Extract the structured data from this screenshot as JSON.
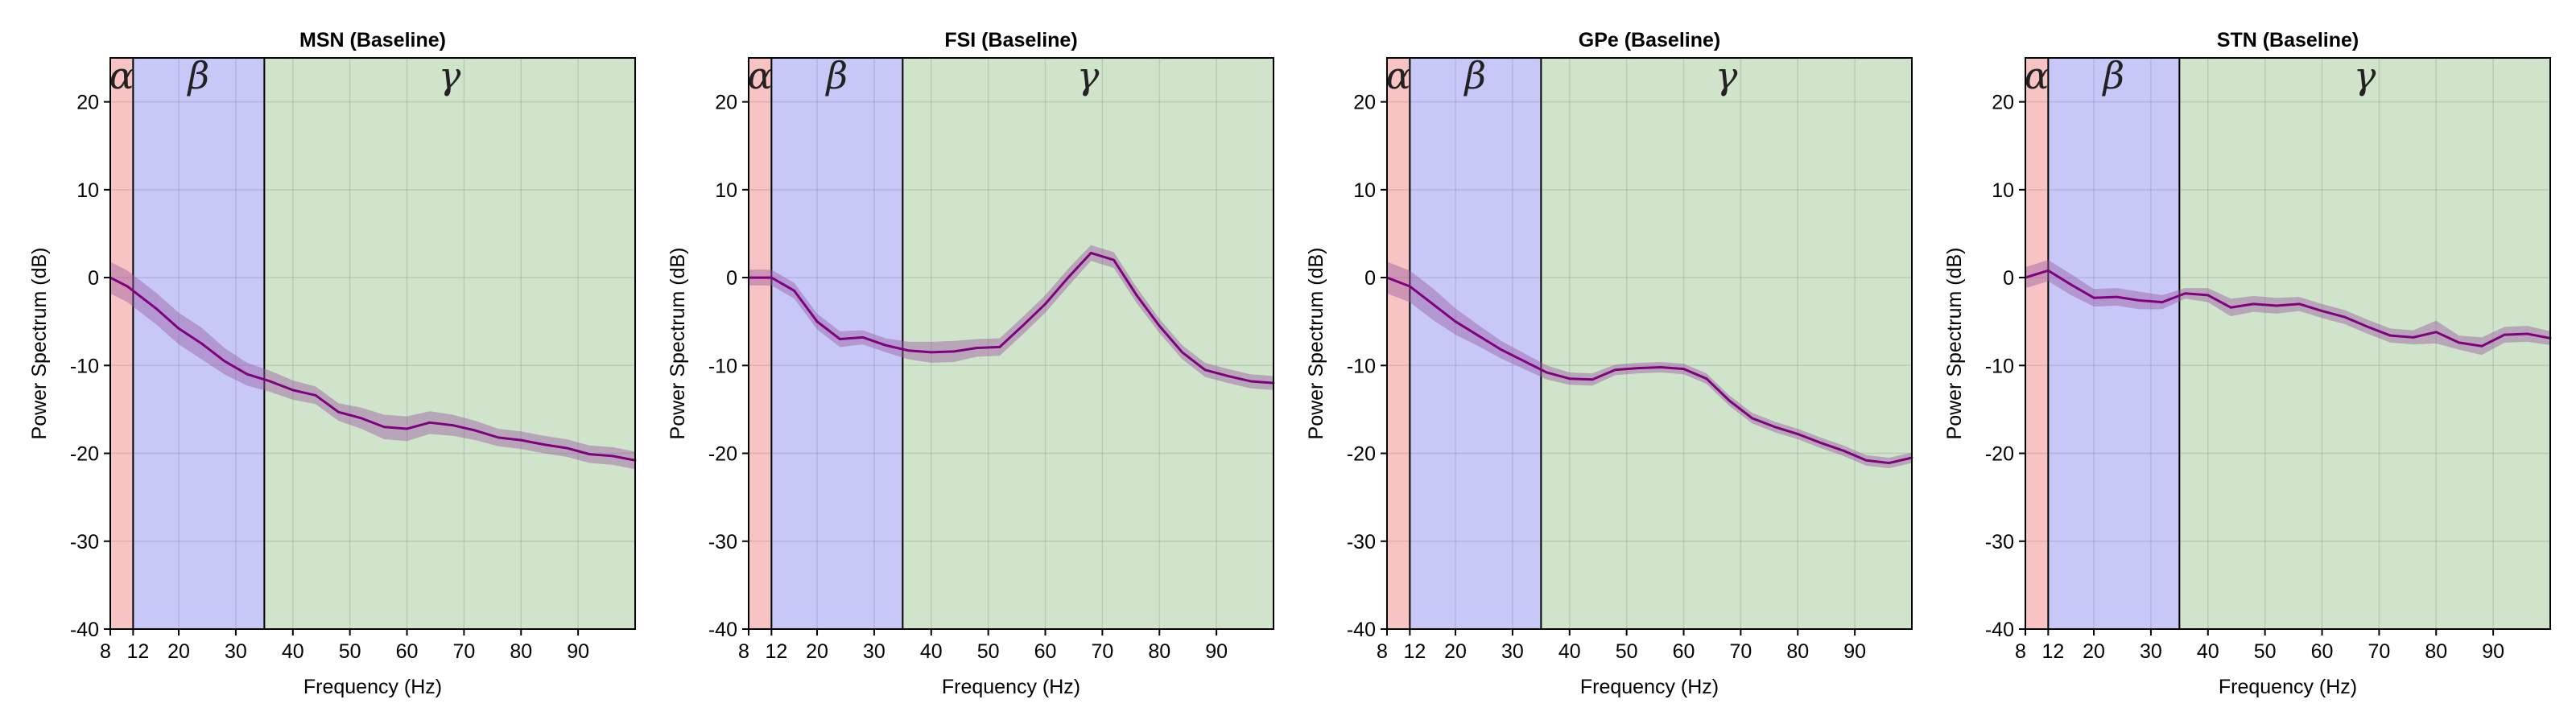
{
  "figure": {
    "background": "#ffffff"
  },
  "bands": [
    {
      "name": "alpha",
      "label": "α",
      "from": 8,
      "to": 12,
      "color": "#f7c3c3"
    },
    {
      "name": "beta",
      "label": "β",
      "from": 12,
      "to": 35,
      "color": "#c8c8f8"
    },
    {
      "name": "gamma",
      "label": "γ",
      "from": 35,
      "to": 100,
      "color": "#cfe4cb"
    }
  ],
  "style": {
    "line_color": "#800080",
    "ci_color": "#9a5aa0",
    "grid": true
  },
  "chart_data": [
    {
      "type": "line",
      "title": "MSN (Baseline)",
      "xlabel": "Frequency (Hz)",
      "ylabel": "Power Spectrum (dB)",
      "xlim": [
        8,
        100
      ],
      "ylim": [
        -40,
        25
      ],
      "xticks": [
        8,
        12,
        20,
        30,
        40,
        50,
        60,
        70,
        80,
        90
      ],
      "yticks": [
        -40,
        -30,
        -20,
        -10,
        0,
        10,
        20
      ],
      "x": [
        8,
        11,
        16,
        20,
        24,
        28,
        32,
        36,
        40,
        44,
        48,
        52,
        56,
        60,
        64,
        68,
        72,
        76,
        80,
        84,
        88,
        92,
        96,
        100
      ],
      "y": [
        0,
        -1,
        -3.5,
        -5.8,
        -7.5,
        -9.5,
        -11,
        -11.8,
        -12.8,
        -13.4,
        -15.3,
        -16,
        -17,
        -17.2,
        -16.5,
        -16.8,
        -17.4,
        -18.2,
        -18.5,
        -19,
        -19.4,
        -20.1,
        -20.3,
        -20.8
      ],
      "ci": [
        1.8,
        1.8,
        1.8,
        1.8,
        1.8,
        1.5,
        1.3,
        1.2,
        1.1,
        1.0,
        1.0,
        1.2,
        1.4,
        1.4,
        1.3,
        1.2,
        1.1,
        1.0,
        1.0,
        1.0,
        1.0,
        1.0,
        1.0,
        1.0
      ]
    },
    {
      "type": "line",
      "title": "FSI (Baseline)",
      "xlabel": "Frequency (Hz)",
      "ylabel": "Power Spectrum (dB)",
      "xlim": [
        8,
        100
      ],
      "ylim": [
        -40,
        25
      ],
      "xticks": [
        8,
        12,
        20,
        30,
        40,
        50,
        60,
        70,
        80,
        90
      ],
      "yticks": [
        -40,
        -30,
        -20,
        -10,
        0,
        10,
        20
      ],
      "x": [
        8,
        12,
        16,
        20,
        24,
        28,
        32,
        36,
        40,
        44,
        48,
        52,
        56,
        60,
        64,
        68,
        72,
        76,
        80,
        84,
        88,
        92,
        96,
        100
      ],
      "y": [
        0,
        0,
        -1.5,
        -5,
        -7,
        -6.8,
        -7.7,
        -8.3,
        -8.5,
        -8.4,
        -8,
        -7.9,
        -5.5,
        -3,
        0,
        2.8,
        2,
        -2,
        -5.5,
        -8.5,
        -10.5,
        -11.2,
        -11.8,
        -12
      ],
      "ci": [
        0.9,
        0.9,
        0.9,
        0.9,
        0.9,
        0.8,
        0.8,
        1.0,
        1.2,
        1.2,
        1.0,
        1.0,
        1.0,
        1.0,
        1.0,
        0.9,
        0.9,
        0.9,
        0.8,
        0.8,
        0.8,
        0.8,
        0.8,
        0.8
      ]
    },
    {
      "type": "line",
      "title": "GPe (Baseline)",
      "xlabel": "Frequency (Hz)",
      "ylabel": "Power Spectrum (dB)",
      "xlim": [
        8,
        100
      ],
      "ylim": [
        -40,
        25
      ],
      "xticks": [
        8,
        12,
        20,
        30,
        40,
        50,
        60,
        70,
        80,
        90
      ],
      "yticks": [
        -40,
        -30,
        -20,
        -10,
        0,
        10,
        20
      ],
      "x": [
        8,
        12,
        16,
        20,
        24,
        28,
        32,
        36,
        40,
        44,
        48,
        52,
        56,
        60,
        64,
        68,
        72,
        76,
        80,
        84,
        88,
        92,
        96,
        100
      ],
      "y": [
        0,
        -1,
        -3,
        -5,
        -6.6,
        -8.2,
        -9.5,
        -10.8,
        -11.5,
        -11.6,
        -10.5,
        -10.3,
        -10.2,
        -10.4,
        -11.5,
        -14,
        -16,
        -17,
        -17.8,
        -18.8,
        -19.7,
        -20.8,
        -21.1,
        -20.5
      ],
      "ci": [
        1.8,
        1.8,
        1.8,
        1.5,
        1.2,
        1.0,
        0.9,
        0.8,
        0.7,
        0.7,
        0.6,
        0.6,
        0.6,
        0.6,
        0.6,
        0.6,
        0.6,
        0.6,
        0.6,
        0.6,
        0.6,
        0.6,
        0.6,
        0.6
      ]
    },
    {
      "type": "line",
      "title": "STN (Baseline)",
      "xlabel": "Frequency (Hz)",
      "ylabel": "Power Spectrum (dB)",
      "xlim": [
        8,
        100
      ],
      "ylim": [
        -40,
        25
      ],
      "xticks": [
        8,
        12,
        20,
        30,
        40,
        50,
        60,
        70,
        80,
        90
      ],
      "yticks": [
        -40,
        -30,
        -20,
        -10,
        0,
        10,
        20
      ],
      "x": [
        8,
        12,
        16,
        20,
        24,
        28,
        32,
        36,
        40,
        44,
        48,
        52,
        56,
        60,
        64,
        68,
        72,
        76,
        80,
        84,
        88,
        92,
        96,
        100
      ],
      "y": [
        0,
        0.8,
        -0.8,
        -2.3,
        -2.2,
        -2.6,
        -2.8,
        -1.8,
        -2,
        -3.4,
        -3,
        -3.2,
        -3,
        -3.8,
        -4.5,
        -5.6,
        -6.6,
        -6.8,
        -6.2,
        -7.4,
        -7.8,
        -6.5,
        -6.4,
        -6.9
      ],
      "ci": [
        1.2,
        1.2,
        1.2,
        1.0,
        1.0,
        1.0,
        0.8,
        0.6,
        0.8,
        1.0,
        0.9,
        0.9,
        0.8,
        0.8,
        0.8,
        0.8,
        0.8,
        0.8,
        1.3,
        0.8,
        1.0,
        0.9,
        0.9,
        0.8
      ]
    }
  ]
}
